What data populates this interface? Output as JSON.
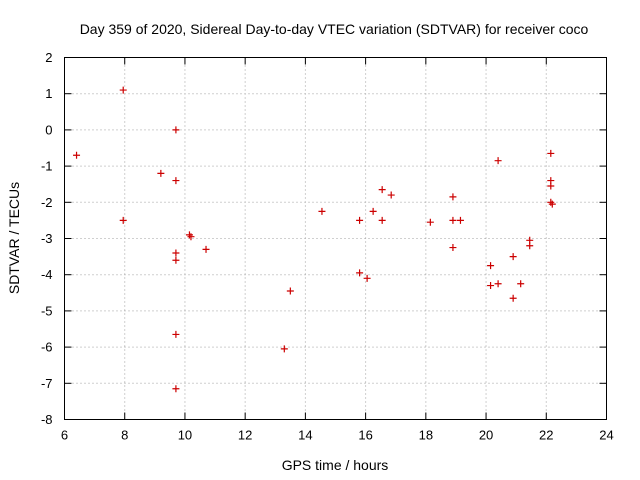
{
  "chart_data": {
    "type": "scatter",
    "title": "Day 359 of 2020, Sidereal Day-to-day VTEC variation (SDTVAR) for receiver coco",
    "xlabel": "GPS time / hours",
    "ylabel": "SDTVAR / TECUs",
    "xlim": [
      6,
      24
    ],
    "ylim": [
      -8,
      2
    ],
    "xticks": [
      6,
      8,
      10,
      12,
      14,
      16,
      18,
      20,
      22,
      24
    ],
    "yticks": [
      2,
      1,
      0,
      -1,
      -2,
      -3,
      -4,
      -5,
      -6,
      -7,
      -8
    ],
    "grid": true,
    "marker": "+",
    "marker_color": "#cc0000",
    "points": [
      [
        6.4,
        -0.7
      ],
      [
        7.95,
        1.1
      ],
      [
        7.95,
        -2.5
      ],
      [
        9.2,
        -1.2
      ],
      [
        9.7,
        0.0
      ],
      [
        9.7,
        -1.4
      ],
      [
        9.7,
        -3.4
      ],
      [
        9.7,
        -3.6
      ],
      [
        9.7,
        -5.65
      ],
      [
        9.7,
        -7.15
      ],
      [
        10.15,
        -2.9
      ],
      [
        10.2,
        -2.95
      ],
      [
        10.7,
        -3.3
      ],
      [
        13.3,
        -6.05
      ],
      [
        13.5,
        -4.45
      ],
      [
        14.55,
        -2.25
      ],
      [
        15.8,
        -2.5
      ],
      [
        15.8,
        -3.95
      ],
      [
        16.05,
        -4.1
      ],
      [
        16.25,
        -2.25
      ],
      [
        16.55,
        -1.65
      ],
      [
        16.55,
        -2.5
      ],
      [
        16.85,
        -1.8
      ],
      [
        18.15,
        -2.55
      ],
      [
        18.9,
        -1.85
      ],
      [
        18.9,
        -2.5
      ],
      [
        18.9,
        -3.25
      ],
      [
        19.15,
        -2.5
      ],
      [
        20.15,
        -3.75
      ],
      [
        20.15,
        -4.3
      ],
      [
        20.4,
        -0.85
      ],
      [
        20.4,
        -4.25
      ],
      [
        20.9,
        -3.5
      ],
      [
        20.9,
        -4.65
      ],
      [
        21.15,
        -4.25
      ],
      [
        21.45,
        -3.05
      ],
      [
        21.45,
        -3.2
      ],
      [
        22.15,
        -0.65
      ],
      [
        22.15,
        -1.4
      ],
      [
        22.15,
        -1.55
      ],
      [
        22.15,
        -2.0
      ],
      [
        22.2,
        -2.05
      ]
    ]
  }
}
